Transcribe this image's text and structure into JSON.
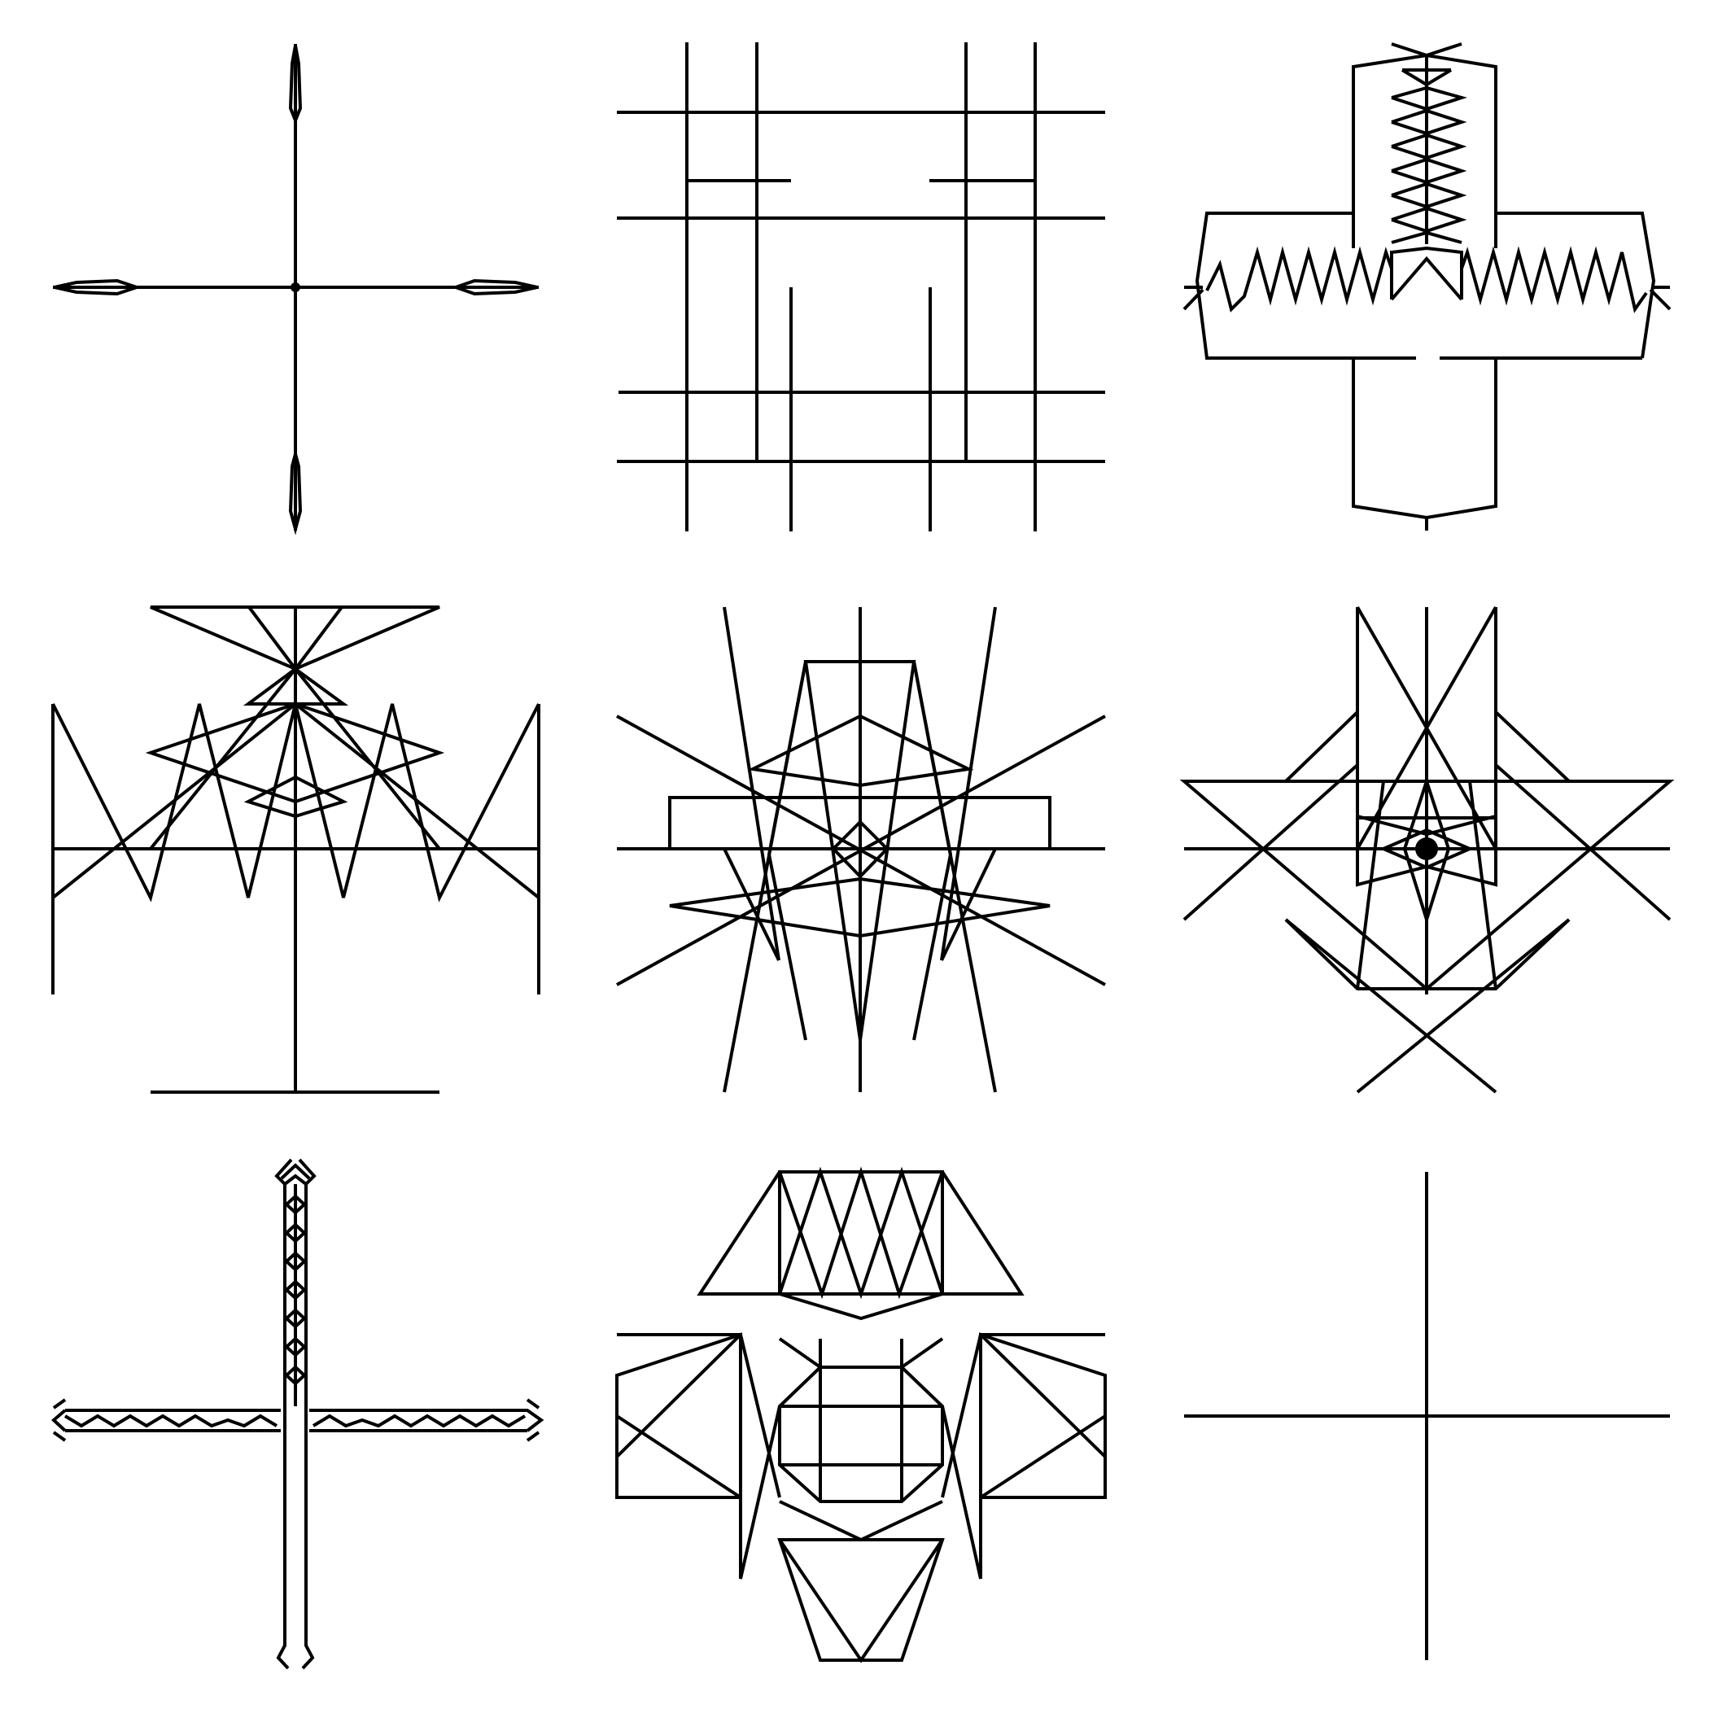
{
  "page": {
    "background": "#ffffff",
    "stroke_color": "#000000"
  },
  "grid": {
    "rows": 3,
    "cols": 3,
    "cells": [
      {
        "id": "plain-cross-with-pointed-tips"
      },
      {
        "id": "rectilinear-grid-pattern"
      },
      {
        "id": "cross-with-zigzag-bands"
      },
      {
        "id": "triangle-fan-emblem"
      },
      {
        "id": "radiating-lines-emblem"
      },
      {
        "id": "star-and-diamond-emblem"
      },
      {
        "id": "braided-thin-cross"
      },
      {
        "id": "geometric-flower-emblem"
      },
      {
        "id": "simple-plus-cross"
      }
    ]
  }
}
